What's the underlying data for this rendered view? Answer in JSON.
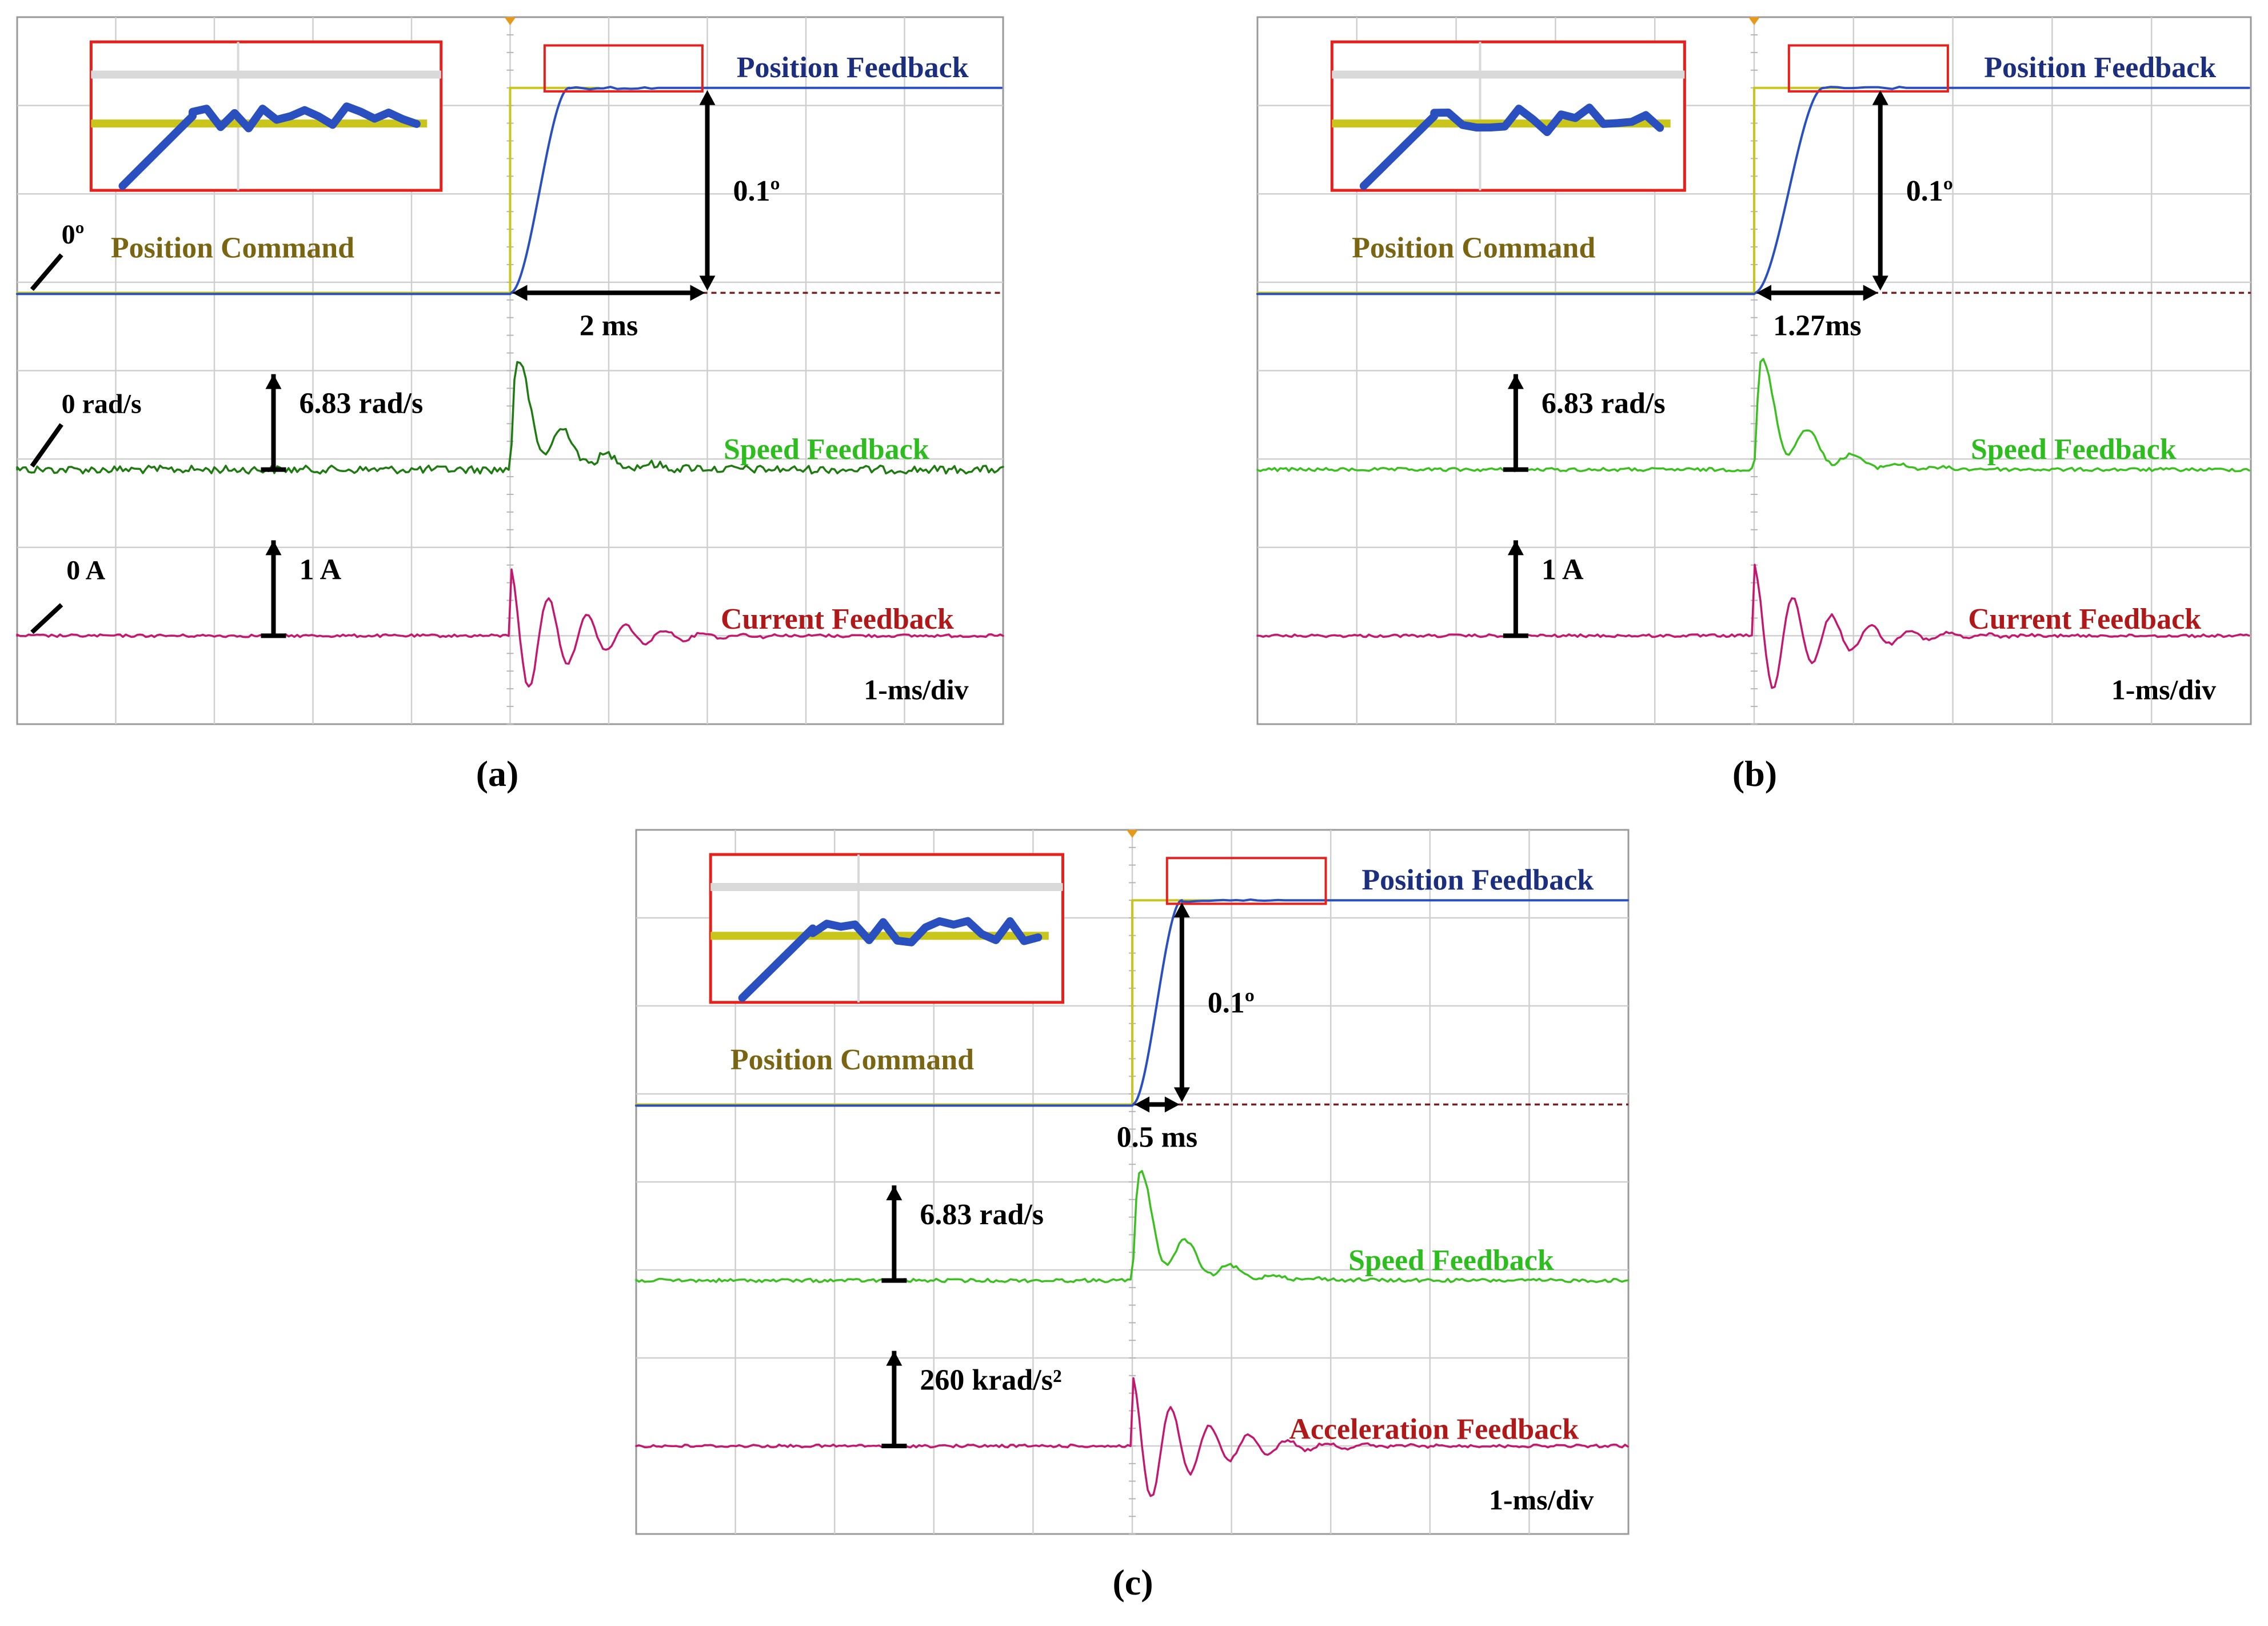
{
  "chart_data": [
    {
      "type": "line",
      "panel_label": "(a)",
      "time_scale": "1-ms/div",
      "divisions": [
        10,
        8
      ],
      "step_time_ms": 5,
      "settling_time_label": "2 ms",
      "settling_time_ms": 2.0,
      "amplitude_label": "0.1º",
      "position_zero_label": "0º",
      "speed_zero_label": "0 rad/s",
      "speed_scale_label": "6.83 rad/s",
      "current_zero_label": "0 A",
      "current_scale_label": "1 A",
      "series": [
        {
          "name": "Position Command",
          "color": "#7a6512",
          "trace_color": "#c9c51a",
          "step_deg": 0.1
        },
        {
          "name": "Position Feedback",
          "color": "#1c2f7e",
          "trace_color": "#2a4fbf",
          "final_deg": 0.1,
          "rise_ms": 0.6
        },
        {
          "name": "Speed Feedback",
          "color": "#2ebd1e",
          "trace_color": "#1f7a12",
          "peak_rad_s": 6.83,
          "noise": "high"
        },
        {
          "name": "Current Feedback",
          "color": "#b01919",
          "trace_color": "#c2186f",
          "peak_A": 1.3
        }
      ]
    },
    {
      "type": "line",
      "panel_label": "(b)",
      "time_scale": "1-ms/div",
      "divisions": [
        10,
        8
      ],
      "step_time_ms": 5,
      "settling_time_label": "1.27ms",
      "settling_time_ms": 1.27,
      "amplitude_label": "0.1º",
      "speed_scale_label": "6.83 rad/s",
      "current_scale_label": "1 A",
      "series": [
        {
          "name": "Position Command",
          "color": "#7a6512",
          "trace_color": "#c9c51a",
          "step_deg": 0.1
        },
        {
          "name": "Position Feedback",
          "color": "#1c2f7e",
          "trace_color": "#2a4fbf",
          "final_deg": 0.1,
          "rise_ms": 0.7
        },
        {
          "name": "Speed Feedback",
          "color": "#2ebd1e",
          "trace_color": "#3cc021",
          "peak_rad_s": 7.0,
          "noise": "low"
        },
        {
          "name": "Current Feedback",
          "color": "#b01919",
          "trace_color": "#c2186f",
          "peak_A": 1.3
        }
      ]
    },
    {
      "type": "line",
      "panel_label": "(c)",
      "time_scale": "1-ms/div",
      "divisions": [
        10,
        8
      ],
      "step_time_ms": 5,
      "settling_time_label": "0.5 ms",
      "settling_time_ms": 0.5,
      "amplitude_label": "0.1º",
      "speed_scale_label": "6.83 rad/s",
      "accel_scale_label": "260 krad/s²",
      "series": [
        {
          "name": "Position Command",
          "color": "#7a6512",
          "trace_color": "#c9c51a",
          "step_deg": 0.1
        },
        {
          "name": "Position Feedback",
          "color": "#1c2f7e",
          "trace_color": "#2a4fbf",
          "final_deg": 0.1,
          "rise_ms": 0.5
        },
        {
          "name": "Speed Feedback",
          "color": "#2ebd1e",
          "trace_color": "#3cc021",
          "peak_rad_s": 7.2,
          "noise": "low"
        },
        {
          "name": "Acceleration Feedback",
          "color": "#b01919",
          "trace_color": "#c2186f",
          "peak_krad_s2": 260
        }
      ]
    }
  ]
}
